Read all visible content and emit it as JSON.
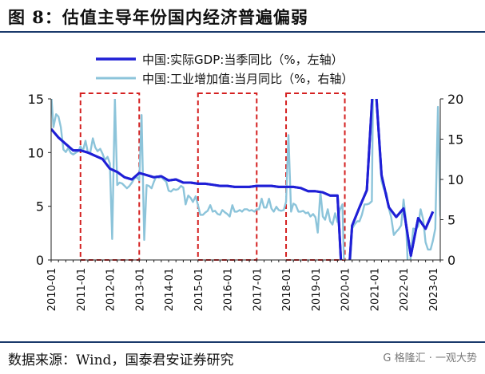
{
  "header": {
    "title": "图 8：估值主导年份国内经济普遍偏弱"
  },
  "footer": {
    "source": "数据来源：Wind，国泰君安证券研究",
    "watermark": "G 格隆汇 · 一观大势"
  },
  "chart_data": {
    "type": "line",
    "title": "图 8：估值主导年份国内经济普遍偏弱",
    "x_tick_labels": [
      "2010-01",
      "2011-01",
      "2012-01",
      "2013-01",
      "2014-01",
      "2015-01",
      "2016-01",
      "2017-01",
      "2018-01",
      "2019-01",
      "2020-01",
      "2021-01",
      "2022-01",
      "2023-01"
    ],
    "y_left": {
      "min": 0,
      "max": 15,
      "ticks": [
        0,
        5,
        10,
        15
      ],
      "label": ""
    },
    "y_right": {
      "min": 0,
      "max": 20,
      "ticks": [
        0,
        5,
        10,
        15,
        20
      ],
      "label": ""
    },
    "legend_position": "top",
    "grid": false,
    "colors": {
      "gdp": "#1f1fd6",
      "industrial": "#8cc4da",
      "box": "#d42020"
    },
    "series": [
      {
        "name": "中国:实际GDP:当季同比（%，左轴）",
        "axis": "left",
        "points": [
          [
            2010.0,
            12.2
          ],
          [
            2010.25,
            11.4
          ],
          [
            2010.5,
            10.8
          ],
          [
            2010.75,
            10.2
          ],
          [
            2011.0,
            10.2
          ],
          [
            2011.25,
            10.0
          ],
          [
            2011.5,
            9.7
          ],
          [
            2011.75,
            9.4
          ],
          [
            2012.0,
            8.5
          ],
          [
            2012.25,
            8.2
          ],
          [
            2012.5,
            7.7
          ],
          [
            2012.75,
            7.5
          ],
          [
            2013.0,
            8.1
          ],
          [
            2013.25,
            7.9
          ],
          [
            2013.5,
            7.7
          ],
          [
            2013.75,
            7.8
          ],
          [
            2014.0,
            7.4
          ],
          [
            2014.25,
            7.5
          ],
          [
            2014.5,
            7.2
          ],
          [
            2014.75,
            7.2
          ],
          [
            2015.0,
            7.1
          ],
          [
            2015.25,
            7.1
          ],
          [
            2015.5,
            7.0
          ],
          [
            2015.75,
            6.9
          ],
          [
            2016.0,
            6.9
          ],
          [
            2016.25,
            6.8
          ],
          [
            2016.5,
            6.8
          ],
          [
            2016.75,
            6.8
          ],
          [
            2017.0,
            6.9
          ],
          [
            2017.25,
            6.9
          ],
          [
            2017.5,
            6.9
          ],
          [
            2017.75,
            6.8
          ],
          [
            2018.0,
            6.8
          ],
          [
            2018.25,
            6.8
          ],
          [
            2018.5,
            6.7
          ],
          [
            2018.75,
            6.4
          ],
          [
            2019.0,
            6.4
          ],
          [
            2019.25,
            6.3
          ],
          [
            2019.5,
            6.0
          ],
          [
            2019.75,
            6.0
          ],
          [
            2020.0,
            -6.8
          ],
          [
            2020.25,
            3.2
          ],
          [
            2020.5,
            4.9
          ],
          [
            2020.75,
            6.5
          ],
          [
            2021.0,
            18.3
          ],
          [
            2021.25,
            7.9
          ],
          [
            2021.5,
            4.9
          ],
          [
            2021.75,
            4.0
          ],
          [
            2022.0,
            4.8
          ],
          [
            2022.25,
            0.4
          ],
          [
            2022.5,
            3.9
          ],
          [
            2022.75,
            2.9
          ],
          [
            2023.0,
            4.5
          ]
        ]
      },
      {
        "name": "中国:工业增加值:当月同比（%，右轴）",
        "axis": "right",
        "points": [
          [
            2010.0,
            20.7
          ],
          [
            2010.08,
            16.5
          ],
          [
            2010.17,
            18.1
          ],
          [
            2010.25,
            17.8
          ],
          [
            2010.33,
            16.5
          ],
          [
            2010.42,
            13.7
          ],
          [
            2010.5,
            13.4
          ],
          [
            2010.58,
            13.9
          ],
          [
            2010.67,
            13.3
          ],
          [
            2010.75,
            13.1
          ],
          [
            2010.83,
            13.3
          ],
          [
            2010.92,
            13.5
          ],
          [
            2011.0,
            14.1
          ],
          [
            2011.08,
            13.5
          ],
          [
            2011.17,
            14.8
          ],
          [
            2011.25,
            13.4
          ],
          [
            2011.33,
            13.3
          ],
          [
            2011.42,
            15.1
          ],
          [
            2011.5,
            14.0
          ],
          [
            2011.58,
            13.5
          ],
          [
            2011.67,
            13.8
          ],
          [
            2011.75,
            13.2
          ],
          [
            2011.83,
            12.4
          ],
          [
            2011.92,
            12.8
          ],
          [
            2012.0,
            12.0
          ],
          [
            2012.08,
            2.6
          ],
          [
            2012.17,
            20.0
          ],
          [
            2012.25,
            9.3
          ],
          [
            2012.33,
            9.6
          ],
          [
            2012.42,
            9.5
          ],
          [
            2012.5,
            9.2
          ],
          [
            2012.58,
            8.9
          ],
          [
            2012.67,
            9.2
          ],
          [
            2012.75,
            9.6
          ],
          [
            2012.83,
            10.1
          ],
          [
            2012.92,
            10.3
          ],
          [
            2013.0,
            9.9
          ],
          [
            2013.08,
            18.0
          ],
          [
            2013.17,
            2.5
          ],
          [
            2013.25,
            9.3
          ],
          [
            2013.33,
            9.2
          ],
          [
            2013.42,
            8.9
          ],
          [
            2013.5,
            9.7
          ],
          [
            2013.58,
            10.4
          ],
          [
            2013.67,
            10.2
          ],
          [
            2013.75,
            10.3
          ],
          [
            2013.83,
            10.0
          ],
          [
            2013.92,
            9.7
          ],
          [
            2014.0,
            8.6
          ],
          [
            2014.08,
            8.5
          ],
          [
            2014.17,
            8.8
          ],
          [
            2014.25,
            8.7
          ],
          [
            2014.33,
            8.8
          ],
          [
            2014.42,
            9.2
          ],
          [
            2014.5,
            9.0
          ],
          [
            2014.58,
            6.9
          ],
          [
            2014.67,
            8.0
          ],
          [
            2014.75,
            7.7
          ],
          [
            2014.83,
            7.2
          ],
          [
            2014.92,
            7.9
          ],
          [
            2015.0,
            6.8
          ],
          [
            2015.08,
            5.6
          ],
          [
            2015.17,
            5.6
          ],
          [
            2015.25,
            5.9
          ],
          [
            2015.33,
            6.1
          ],
          [
            2015.42,
            6.8
          ],
          [
            2015.5,
            6.0
          ],
          [
            2015.58,
            6.1
          ],
          [
            2015.67,
            5.7
          ],
          [
            2015.75,
            5.6
          ],
          [
            2015.83,
            6.2
          ],
          [
            2015.92,
            5.9
          ],
          [
            2016.0,
            5.7
          ],
          [
            2016.08,
            5.4
          ],
          [
            2016.17,
            6.8
          ],
          [
            2016.25,
            6.0
          ],
          [
            2016.33,
            6.0
          ],
          [
            2016.42,
            6.2
          ],
          [
            2016.5,
            6.0
          ],
          [
            2016.58,
            6.3
          ],
          [
            2016.67,
            6.3
          ],
          [
            2016.75,
            6.1
          ],
          [
            2016.83,
            6.2
          ],
          [
            2016.92,
            6.0
          ],
          [
            2017.0,
            6.3
          ],
          [
            2017.08,
            6.3
          ],
          [
            2017.17,
            7.6
          ],
          [
            2017.25,
            6.5
          ],
          [
            2017.33,
            6.5
          ],
          [
            2017.42,
            7.6
          ],
          [
            2017.5,
            6.4
          ],
          [
            2017.58,
            6.0
          ],
          [
            2017.67,
            6.6
          ],
          [
            2017.75,
            6.2
          ],
          [
            2017.83,
            6.1
          ],
          [
            2017.92,
            6.2
          ],
          [
            2018.0,
            7.2
          ],
          [
            2018.08,
            15.5
          ],
          [
            2018.17,
            6.0
          ],
          [
            2018.25,
            7.0
          ],
          [
            2018.33,
            6.8
          ],
          [
            2018.42,
            6.0
          ],
          [
            2018.5,
            6.0
          ],
          [
            2018.58,
            6.1
          ],
          [
            2018.67,
            5.8
          ],
          [
            2018.75,
            5.9
          ],
          [
            2018.83,
            5.4
          ],
          [
            2018.92,
            5.7
          ],
          [
            2019.0,
            5.3
          ],
          [
            2019.08,
            3.4
          ],
          [
            2019.17,
            8.5
          ],
          [
            2019.25,
            5.4
          ],
          [
            2019.33,
            5.0
          ],
          [
            2019.42,
            6.3
          ],
          [
            2019.5,
            4.8
          ],
          [
            2019.58,
            4.4
          ],
          [
            2019.67,
            5.8
          ],
          [
            2019.75,
            4.7
          ],
          [
            2019.83,
            6.2
          ],
          [
            2019.92,
            6.9
          ],
          [
            2020.0,
            -4.3
          ],
          [
            2020.08,
            -13.5
          ],
          [
            2020.17,
            -1.1
          ],
          [
            2020.25,
            3.9
          ],
          [
            2020.33,
            4.4
          ],
          [
            2020.42,
            4.8
          ],
          [
            2020.5,
            4.8
          ],
          [
            2020.58,
            5.6
          ],
          [
            2020.67,
            6.9
          ],
          [
            2020.75,
            6.9
          ],
          [
            2020.83,
            7.0
          ],
          [
            2020.92,
            7.3
          ],
          [
            2021.0,
            35.1
          ],
          [
            2021.08,
            21.0
          ],
          [
            2021.17,
            14.1
          ],
          [
            2021.25,
            9.8
          ],
          [
            2021.33,
            8.8
          ],
          [
            2021.42,
            8.3
          ],
          [
            2021.5,
            6.4
          ],
          [
            2021.58,
            5.3
          ],
          [
            2021.67,
            3.1
          ],
          [
            2021.75,
            3.5
          ],
          [
            2021.83,
            3.8
          ],
          [
            2021.92,
            4.3
          ],
          [
            2022.0,
            7.5
          ],
          [
            2022.08,
            5.0
          ],
          [
            2022.17,
            -2.9
          ],
          [
            2022.25,
            0.7
          ],
          [
            2022.33,
            3.9
          ],
          [
            2022.42,
            3.8
          ],
          [
            2022.5,
            4.2
          ],
          [
            2022.58,
            6.3
          ],
          [
            2022.67,
            5.0
          ],
          [
            2022.75,
            2.2
          ],
          [
            2022.83,
            1.3
          ],
          [
            2022.92,
            1.3
          ],
          [
            2023.0,
            2.4
          ],
          [
            2023.08,
            3.9
          ],
          [
            2023.17,
            19.0
          ],
          [
            2023.25,
            5.6
          ],
          [
            2023.33,
            4.0
          ]
        ]
      }
    ],
    "highlight_periods": [
      [
        2011.0,
        2013.0
      ],
      [
        2015.0,
        2017.0
      ],
      [
        2018.0,
        2020.0
      ]
    ]
  }
}
